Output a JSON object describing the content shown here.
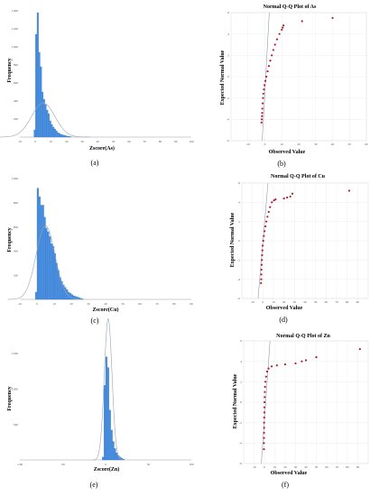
{
  "colors": {
    "bar": "#4a90e2",
    "bar_edge": "#2f6fbe",
    "curve": "#9aa3b5",
    "point": "#b01c2e",
    "ref_line": "#8f9bb3",
    "grid": "#e4e4e4"
  },
  "chart_data": [
    {
      "type": "bar",
      "subtype": "histogram",
      "panel_label": "(a)",
      "xlabel": "Zscore(As)",
      "ylabel": "Frequency",
      "xlim": [
        -10,
        100
      ],
      "ylim": [
        0,
        1400
      ],
      "x_ticks": [
        "-10",
        "0",
        "10",
        "20",
        "30",
        "40",
        "50",
        "60",
        "70",
        "80",
        "90",
        "100"
      ],
      "y_ticks": [
        "200",
        "400",
        "600",
        "800",
        "1,000",
        "1,200",
        "1,400"
      ],
      "bin_width": 1,
      "bin_starts": [
        -1,
        0,
        1,
        2,
        3,
        4,
        5,
        6,
        7,
        8,
        9,
        10,
        11,
        12,
        13,
        14,
        15,
        16,
        17,
        18,
        19,
        20,
        21,
        22
      ],
      "values": [
        80,
        1140,
        1380,
        940,
        780,
        500,
        420,
        360,
        300,
        260,
        180,
        140,
        110,
        90,
        70,
        50,
        40,
        30,
        25,
        20,
        15,
        10,
        8,
        5
      ],
      "normal_curve": {
        "mean": 5,
        "sd": 7.5,
        "n": 7100
      }
    },
    {
      "type": "scatter",
      "subtype": "qq",
      "panel_label": "(b)",
      "title": "Normal Q-Q Plot of As",
      "xlabel": "Observed Value",
      "ylabel": "Expected Normal Value",
      "xlim": [
        -20,
        60
      ],
      "ylim": [
        -6,
        6
      ],
      "x_ticks": [
        "-10",
        "0",
        "10",
        "20",
        "30",
        "40",
        "50",
        "60"
      ],
      "y_ticks": [
        "-6",
        "-4",
        "-2",
        "0",
        "2",
        "4",
        "6"
      ],
      "ref_line": [
        [
          -1.6,
          -6
        ],
        [
          2.6,
          6
        ]
      ],
      "points": [
        [
          -2,
          -4.3
        ],
        [
          -1.8,
          -4.0
        ],
        [
          -1.7,
          -3.7
        ],
        [
          -1.6,
          -3.4
        ],
        [
          -1.5,
          -3.0
        ],
        [
          -1.3,
          -2.5
        ],
        [
          -1.1,
          -2.0
        ],
        [
          -0.9,
          -1.6
        ],
        [
          -0.6,
          -1.2
        ],
        [
          -0.2,
          -0.8
        ],
        [
          0.3,
          -0.4
        ],
        [
          0.9,
          0
        ],
        [
          1.6,
          0.5
        ],
        [
          2.4,
          1.0
        ],
        [
          3.2,
          1.5
        ],
        [
          4.1,
          2
        ],
        [
          5,
          2.5
        ],
        [
          6,
          3
        ],
        [
          7.2,
          3.5
        ],
        [
          8.6,
          4.0
        ],
        [
          10,
          4.4
        ],
        [
          10.5,
          4.6
        ],
        [
          11,
          4.8
        ],
        [
          22,
          5.2
        ],
        [
          40,
          5.5
        ]
      ]
    },
    {
      "type": "bar",
      "subtype": "histogram",
      "panel_label": "(c)",
      "xlabel": "Zscore(Cu)",
      "ylabel": "Frequency",
      "xlim": [
        -10,
        90
      ],
      "ylim": [
        0,
        1000
      ],
      "x_ticks": [
        "-10",
        "0",
        "10",
        "20",
        "30",
        "40",
        "50",
        "60",
        "70",
        "80",
        "90"
      ],
      "y_ticks": [
        "200",
        "400",
        "600",
        "800",
        "1,000"
      ],
      "bin_width": 1,
      "bin_starts": [
        -1,
        0,
        1,
        2,
        3,
        4,
        5,
        6,
        7,
        8,
        9,
        10,
        11,
        12,
        13,
        14,
        15,
        16,
        17,
        18,
        19,
        20,
        21,
        22,
        23,
        24,
        25,
        26
      ],
      "values": [
        60,
        920,
        850,
        780,
        780,
        680,
        590,
        560,
        520,
        460,
        440,
        380,
        300,
        240,
        180,
        150,
        120,
        100,
        80,
        60,
        50,
        40,
        30,
        25,
        20,
        15,
        10,
        6
      ],
      "normal_curve": {
        "mean": 5,
        "sd": 5.5,
        "n": 8400
      }
    },
    {
      "type": "scatter",
      "subtype": "qq",
      "panel_label": "(d)",
      "title": "Normal Q-Q Plot of Cu",
      "xlabel": "Observed Value",
      "ylabel": "Expected Normal Value",
      "xlim": [
        -20,
        100
      ],
      "ylim": [
        -6,
        6
      ],
      "x_ticks": [
        "-10",
        "0",
        "10",
        "20",
        "30",
        "40",
        "50",
        "60",
        "70",
        "80",
        "90"
      ],
      "y_ticks": [
        "-6",
        "-4",
        "-2",
        "0",
        "2",
        "4",
        "6"
      ],
      "ref_line": [
        [
          -4.6,
          -6
        ],
        [
          4.8,
          6
        ]
      ],
      "points": [
        [
          -1.8,
          -4.4
        ],
        [
          -1.6,
          -4.0
        ],
        [
          -1.5,
          -3.5
        ],
        [
          -1.4,
          -3.0
        ],
        [
          -1.2,
          -2.5
        ],
        [
          -1.0,
          -2.0
        ],
        [
          -0.8,
          -1.5
        ],
        [
          -0.5,
          -1.0
        ],
        [
          -0.2,
          -0.5
        ],
        [
          0.3,
          0
        ],
        [
          0.9,
          0.5
        ],
        [
          1.6,
          1.0
        ],
        [
          2.4,
          1.5
        ],
        [
          3.3,
          2
        ],
        [
          4.3,
          2.5
        ],
        [
          5.5,
          3
        ],
        [
          6.8,
          3.5
        ],
        [
          8.5,
          4.0
        ],
        [
          10.5,
          4.2
        ],
        [
          12,
          4.3
        ],
        [
          20,
          4.4
        ],
        [
          23,
          4.5
        ],
        [
          26,
          4.6
        ],
        [
          28,
          4.9
        ],
        [
          82,
          5.2
        ]
      ]
    },
    {
      "type": "bar",
      "subtype": "histogram",
      "panel_label": "(e)",
      "xlabel": "Zscore(Zn)",
      "ylabel": "Frequency",
      "xlim": [
        -100,
        100
      ],
      "ylim": [
        0,
        1750
      ],
      "x_ticks": [
        "-100",
        "-50",
        "0",
        "50",
        "100"
      ],
      "y_ticks": [
        "500",
        "1,000",
        "1,500"
      ],
      "bin_width": 2,
      "bin_starts": [
        -4,
        -2,
        0,
        2,
        4,
        6,
        8,
        10,
        12,
        14,
        16,
        18,
        20
      ],
      "values": [
        40,
        1050,
        1450,
        1300,
        700,
        420,
        260,
        160,
        100,
        60,
        40,
        25,
        10
      ],
      "normal_curve": {
        "mean": 3,
        "sd": 4.5,
        "n": 11200
      }
    },
    {
      "type": "scatter",
      "subtype": "qq",
      "panel_label": "(f)",
      "title": "Normal Q-Q Plot of Zn",
      "xlabel": "Observed Value",
      "ylabel": "Expected Normal Value",
      "xlim": [
        -20,
        100
      ],
      "ylim": [
        -6,
        6
      ],
      "x_ticks": [
        "-10",
        "0",
        "10",
        "20",
        "30",
        "40",
        "50",
        "60",
        "70",
        "80",
        "90"
      ],
      "y_ticks": [
        "-6",
        "-4",
        "-2",
        "0",
        "2",
        "4",
        "6"
      ],
      "ref_line": [
        [
          -3.0,
          -6
        ],
        [
          5.4,
          6
        ]
      ],
      "points": [
        [
          -0.5,
          -4.6
        ],
        [
          -0.5,
          -4.0
        ],
        [
          -0.4,
          -3.5
        ],
        [
          -0.4,
          -3.0
        ],
        [
          -0.3,
          -2.5
        ],
        [
          -0.3,
          -2.0
        ],
        [
          -0.2,
          -1.5
        ],
        [
          -0.1,
          -1.0
        ],
        [
          0,
          -0.5
        ],
        [
          0.1,
          0
        ],
        [
          0.2,
          0.5
        ],
        [
          0.4,
          1.0
        ],
        [
          0.6,
          1.5
        ],
        [
          1.0,
          2.0
        ],
        [
          1.6,
          2.5
        ],
        [
          2.6,
          3.0
        ],
        [
          4,
          3.3
        ],
        [
          7,
          3.5
        ],
        [
          12,
          3.6
        ],
        [
          20,
          3.7
        ],
        [
          30,
          3.8
        ],
        [
          36,
          4.0
        ],
        [
          40,
          4.1
        ],
        [
          50,
          4.4
        ],
        [
          92,
          5.2
        ]
      ]
    }
  ]
}
